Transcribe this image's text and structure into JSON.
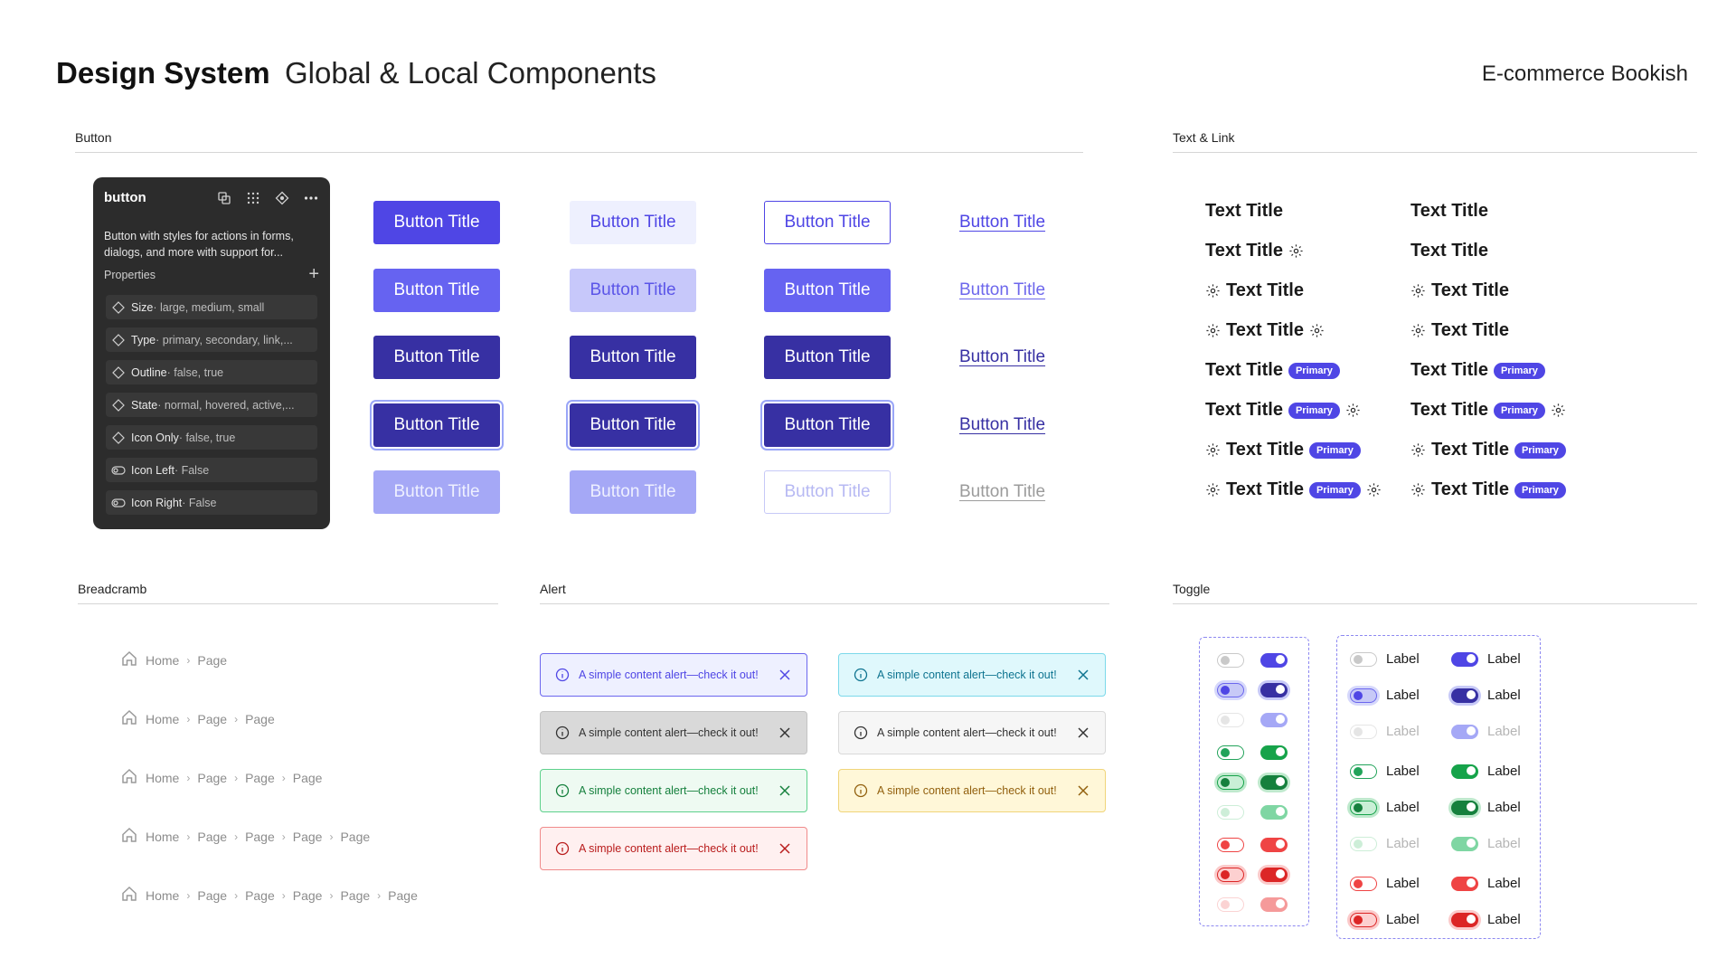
{
  "header": {
    "title": "Design System",
    "subtitle": "Global & Local Components",
    "project": "E-commerce Bookish"
  },
  "sections": {
    "button": "Button",
    "text_link": "Text & Link",
    "breadcrumb": "Breadcramb",
    "alert": "Alert",
    "toggle": "Toggle"
  },
  "panel": {
    "title": "button",
    "description": "Button with styles for actions in forms, dialogs, and more with support for...",
    "properties_label": "Properties",
    "properties": [
      {
        "name": "Size",
        "value": " · large, medium, small",
        "icon": "variant-icon"
      },
      {
        "name": "Type",
        "value": " · primary, secondary, link,...",
        "icon": "variant-icon"
      },
      {
        "name": "Outline",
        "value": " · false, true",
        "icon": "variant-icon"
      },
      {
        "name": "State",
        "value": " · normal, hovered, active,...",
        "icon": "variant-icon"
      },
      {
        "name": "Icon Only",
        "value": " · false, true",
        "icon": "variant-icon"
      },
      {
        "name": "Icon Left",
        "value": " · False",
        "icon": "toggle-icon"
      },
      {
        "name": "Icon Right",
        "value": " · False",
        "icon": "toggle-icon"
      }
    ]
  },
  "buttons": {
    "label": "Button Title"
  },
  "text_link": {
    "label": "Text Title",
    "badge": "Primary"
  },
  "breadcrumb": {
    "home": "Home",
    "page": "Page"
  },
  "alert": {
    "text": "A simple content alert—check it out!"
  },
  "toggle": {
    "label": "Label"
  },
  "colors": {
    "primary": "#4f46e5",
    "success": "#16a34a",
    "danger": "#ef4444"
  }
}
